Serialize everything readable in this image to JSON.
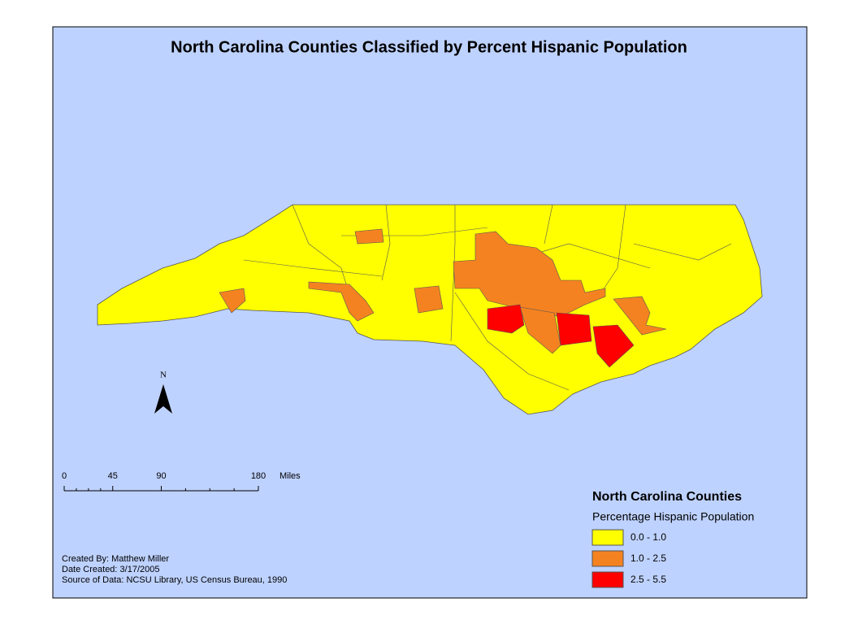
{
  "title": "North Carolina Counties Classified by Percent Hispanic Population",
  "north_arrow": "N",
  "scale_bar": {
    "ticks": [
      0,
      45,
      90,
      180
    ],
    "unit": "Miles"
  },
  "legend": {
    "title": "North Carolina Counties",
    "subtitle": "Percentage Hispanic Population",
    "classes": [
      {
        "label": "0.0 - 1.0",
        "color": "#ffff00"
      },
      {
        "label": "1.0 - 2.5",
        "color": "#f58220"
      },
      {
        "label": "2.5 - 5.5",
        "color": "#ff0000"
      }
    ]
  },
  "credits": [
    "Created By: Matthew Miller",
    "Date Created: 3/17/2005",
    "Source of Data: NCSU Library, US Census Bureau, 1990"
  ]
}
